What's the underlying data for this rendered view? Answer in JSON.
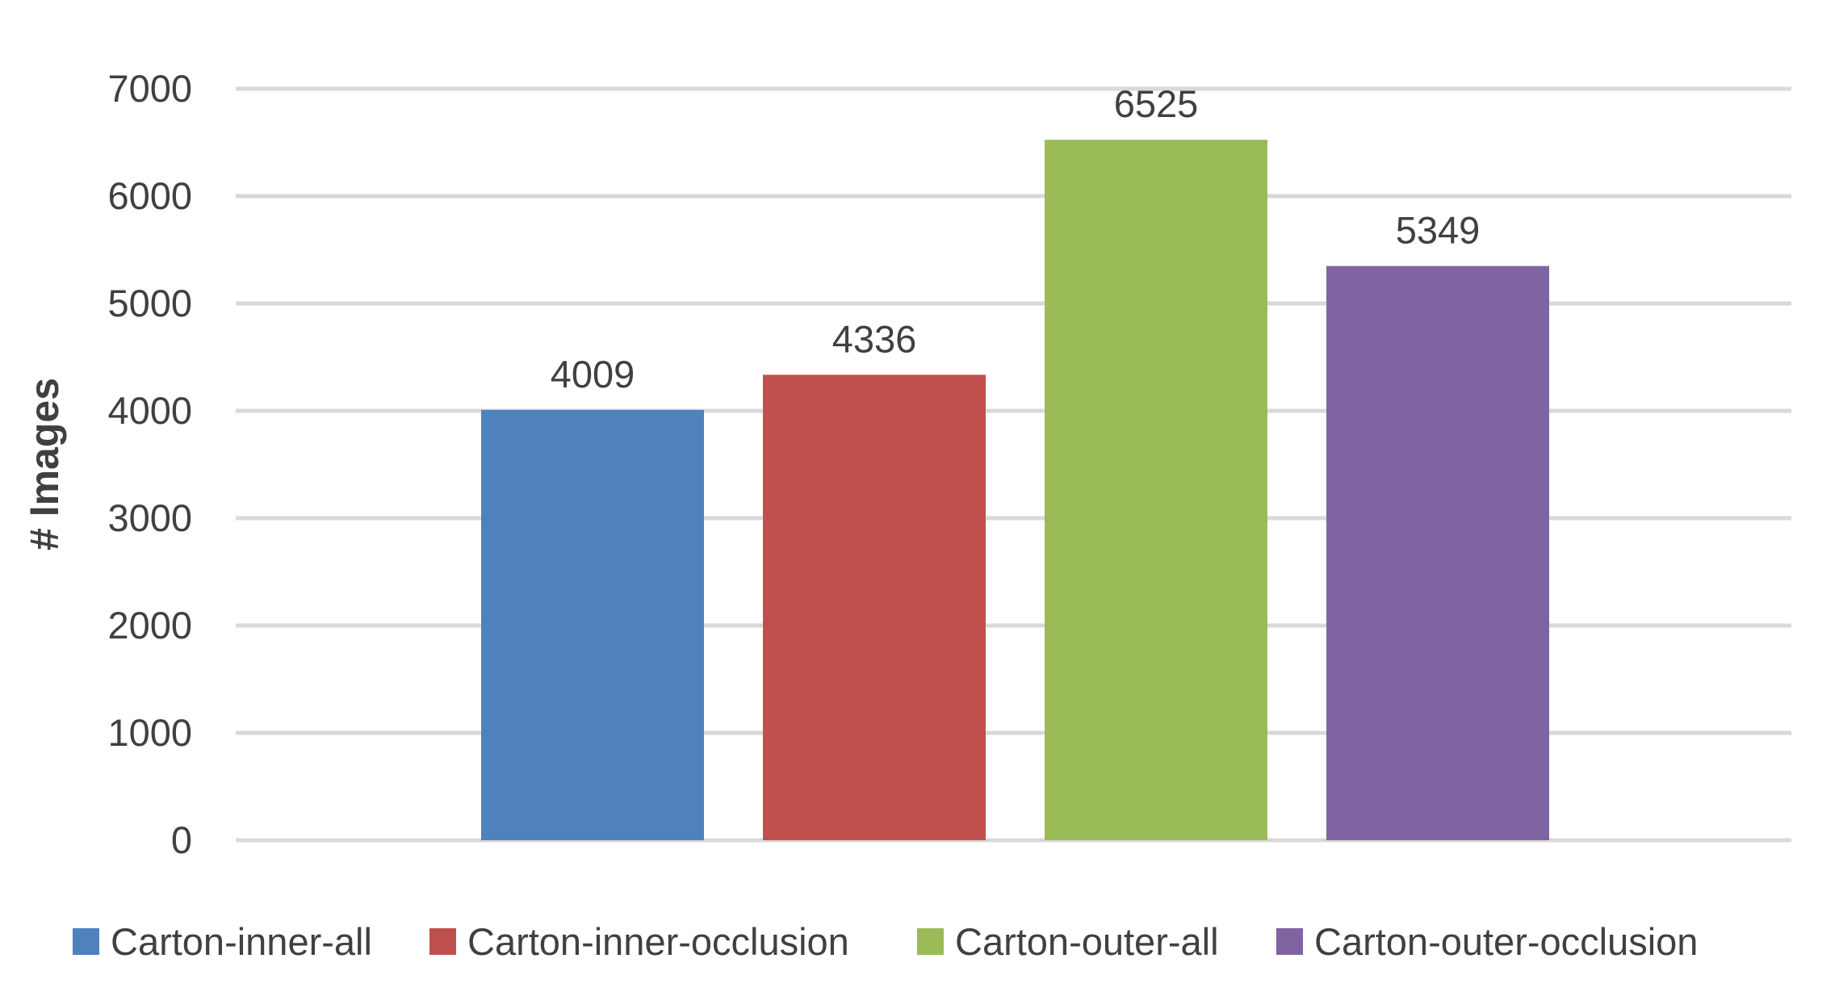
{
  "chart_data": {
    "type": "bar",
    "title": "",
    "xlabel": "",
    "ylabel": "# Images",
    "ylim": [
      0,
      7000
    ],
    "yticks": [
      0,
      1000,
      2000,
      3000,
      4000,
      5000,
      6000,
      7000
    ],
    "grid": true,
    "legend_position": "bottom",
    "series": [
      {
        "name": "Carton-inner-all",
        "value": 4009,
        "color": "#4F81BD"
      },
      {
        "name": "Carton-inner-occlusion",
        "value": 4336,
        "color": "#C0504D"
      },
      {
        "name": "Carton-outer-all",
        "value": 6525,
        "color": "#9BBB59"
      },
      {
        "name": "Carton-outer-occlusion",
        "value": 5349,
        "color": "#8064A2"
      }
    ]
  }
}
